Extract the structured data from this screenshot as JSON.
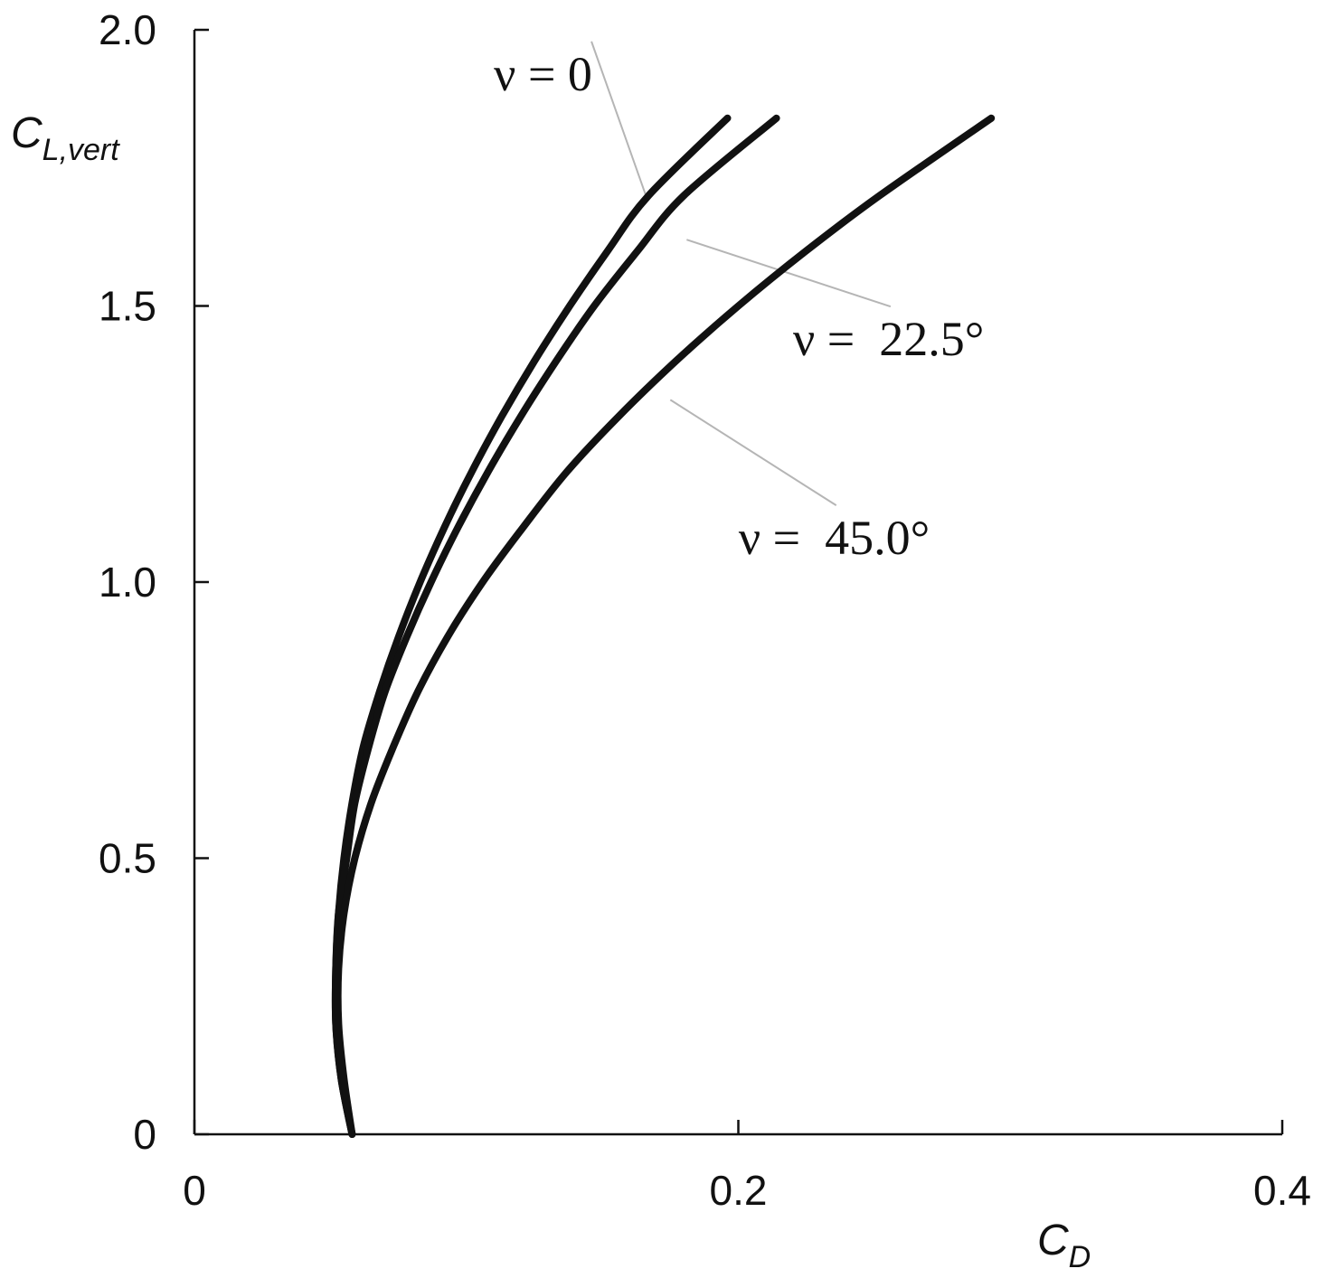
{
  "chart_data": {
    "type": "line",
    "title": "",
    "xlabel": {
      "main": "C",
      "sub": "D"
    },
    "ylabel": {
      "main": "C",
      "sub": "L,vert"
    },
    "xlim": [
      0,
      0.4
    ],
    "ylim": [
      0,
      2.0
    ],
    "x_ticks": [
      {
        "value": 0,
        "label": "0"
      },
      {
        "value": 0.2,
        "label": "0.2"
      },
      {
        "value": 0.4,
        "label": "0.4"
      }
    ],
    "y_ticks": [
      {
        "value": 0,
        "label": "0"
      },
      {
        "value": 0.5,
        "label": "0.5"
      },
      {
        "value": 1.0,
        "label": "1.0"
      },
      {
        "value": 1.5,
        "label": "1.5"
      },
      {
        "value": 2.0,
        "label": "2.0"
      }
    ],
    "grid": false,
    "legend": "none",
    "series": [
      {
        "name": "ν = 0",
        "color": "#111111",
        "points": [
          [
            0.058,
            0.0
          ],
          [
            0.054,
            0.1
          ],
          [
            0.052,
            0.2
          ],
          [
            0.052,
            0.3
          ],
          [
            0.053,
            0.4
          ],
          [
            0.055,
            0.5
          ],
          [
            0.058,
            0.6
          ],
          [
            0.062,
            0.7
          ],
          [
            0.068,
            0.8
          ],
          [
            0.075,
            0.9
          ],
          [
            0.083,
            1.0
          ],
          [
            0.092,
            1.1
          ],
          [
            0.102,
            1.2
          ],
          [
            0.113,
            1.3
          ],
          [
            0.125,
            1.4
          ],
          [
            0.138,
            1.5
          ],
          [
            0.152,
            1.6
          ],
          [
            0.167,
            1.7
          ],
          [
            0.196,
            1.84
          ]
        ]
      },
      {
        "name": "ν =  22.5°",
        "color": "#111111",
        "points": [
          [
            0.058,
            0.0
          ],
          [
            0.054,
            0.1
          ],
          [
            0.052,
            0.2
          ],
          [
            0.052,
            0.3
          ],
          [
            0.053,
            0.4
          ],
          [
            0.056,
            0.5
          ],
          [
            0.059,
            0.6
          ],
          [
            0.064,
            0.7
          ],
          [
            0.07,
            0.8
          ],
          [
            0.078,
            0.9
          ],
          [
            0.087,
            1.0
          ],
          [
            0.097,
            1.1
          ],
          [
            0.108,
            1.2
          ],
          [
            0.12,
            1.3
          ],
          [
            0.133,
            1.4
          ],
          [
            0.147,
            1.5
          ],
          [
            0.163,
            1.6
          ],
          [
            0.18,
            1.7
          ],
          [
            0.214,
            1.84
          ]
        ]
      },
      {
        "name": "ν =  45.0°",
        "color": "#111111",
        "points": [
          [
            0.058,
            0.0
          ],
          [
            0.055,
            0.1
          ],
          [
            0.053,
            0.2
          ],
          [
            0.053,
            0.3
          ],
          [
            0.055,
            0.4
          ],
          [
            0.059,
            0.5
          ],
          [
            0.065,
            0.6
          ],
          [
            0.073,
            0.7
          ],
          [
            0.082,
            0.8
          ],
          [
            0.093,
            0.9
          ],
          [
            0.106,
            1.0
          ],
          [
            0.121,
            1.1
          ],
          [
            0.137,
            1.2
          ],
          [
            0.156,
            1.3
          ],
          [
            0.177,
            1.4
          ],
          [
            0.2,
            1.5
          ],
          [
            0.225,
            1.6
          ],
          [
            0.252,
            1.7
          ],
          [
            0.293,
            1.84
          ]
        ]
      }
    ],
    "annotations": [
      {
        "text": "ν = 0",
        "series": 0,
        "anchor": [
          0.166,
          1.7
        ],
        "label_at": [
          0.14,
          1.92
        ]
      },
      {
        "text": "ν =  22.5°",
        "series": 1,
        "anchor": [
          0.181,
          1.62
        ],
        "label_at": [
          0.25,
          1.44
        ]
      },
      {
        "text": "ν =  45.0°",
        "series": 2,
        "anchor": [
          0.175,
          1.33
        ],
        "label_at": [
          0.23,
          1.08
        ]
      }
    ]
  }
}
